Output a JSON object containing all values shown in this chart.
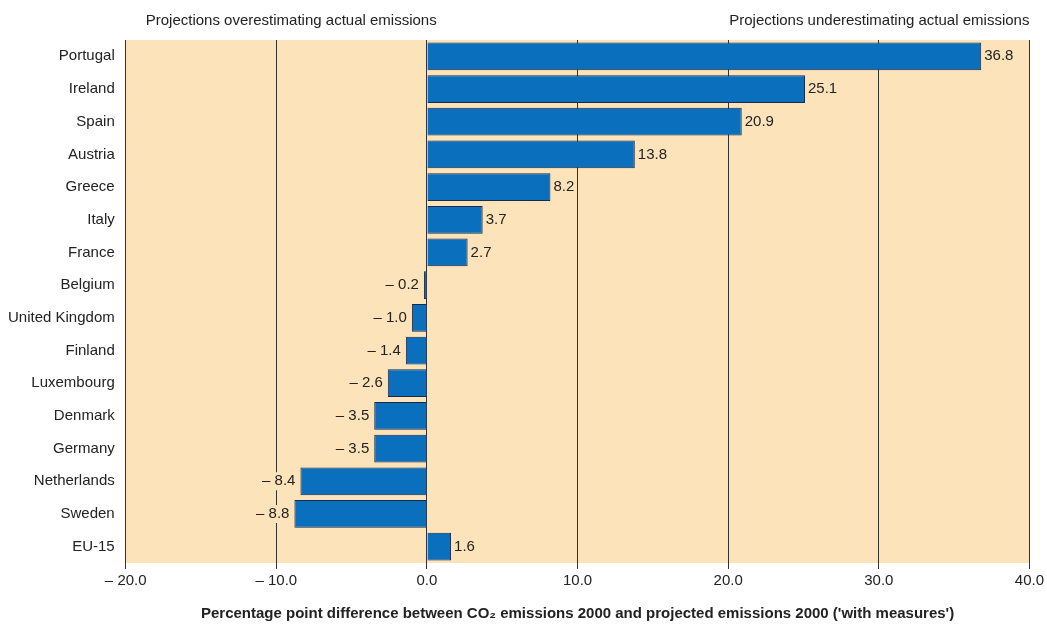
{
  "chart_data": {
    "type": "bar",
    "orientation": "horizontal",
    "xlabel": "Percentage point difference between CO₂ emissions 2000 and projected emissions 2000 ('with measures')",
    "annotations": [
      "Projections overestimating actual emissions",
      "Projections underestimating actual emissions"
    ],
    "categories": [
      "Portugal",
      "Ireland",
      "Spain",
      "Austria",
      "Greece",
      "Italy",
      "France",
      "Belgium",
      "United Kingdom",
      "Finland",
      "Luxembourg",
      "Denmark",
      "Germany",
      "Netherlands",
      "Sweden",
      "EU-15"
    ],
    "values": [
      36.8,
      25.1,
      20.9,
      13.8,
      8.2,
      3.7,
      2.7,
      -0.2,
      -1.0,
      -1.4,
      -2.6,
      -3.5,
      -3.5,
      -8.4,
      -8.8,
      1.6
    ],
    "value_labels": [
      "36.8",
      "25.1",
      "20.9",
      "13.8",
      "8.2",
      "3.7",
      "2.7",
      "– 0.2",
      "– 1.0",
      "– 1.4",
      "– 2.6",
      "– 3.5",
      "– 3.5",
      "– 8.4",
      "– 8.8",
      "1.6"
    ],
    "color": "#0a6fbd",
    "xlim": [
      -20,
      40
    ],
    "xticks": [
      {
        "value": -20,
        "label": "– 20.0"
      },
      {
        "value": -10,
        "label": "– 10.0"
      },
      {
        "value": 0,
        "label": "0.0"
      },
      {
        "value": 10,
        "label": "10.0"
      },
      {
        "value": 20,
        "label": "20.0"
      },
      {
        "value": 30,
        "label": "30.0"
      },
      {
        "value": 40,
        "label": "40.0"
      }
    ],
    "grid": "x",
    "legend": false
  }
}
